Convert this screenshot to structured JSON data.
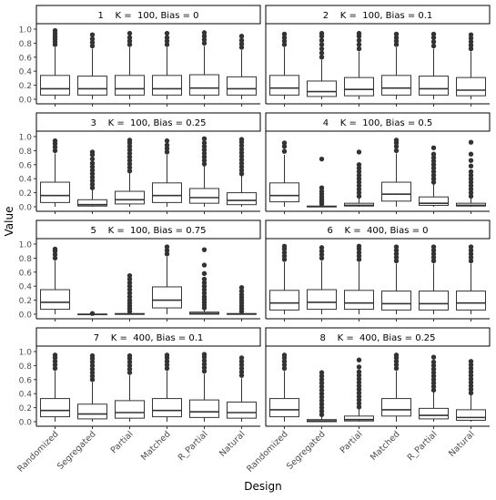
{
  "chart_data": {
    "type": "box",
    "facet_layout": "2 columns x 4 rows",
    "xlabel": "Design",
    "ylabel": "Value",
    "categories": [
      "Randomized",
      "Segregated",
      "Partial",
      "Matched",
      "R_Partial",
      "Natural"
    ],
    "ylim": [
      0,
      1.0
    ],
    "y_ticks": [
      "0.0",
      "0.2",
      "0.4",
      "0.6",
      "0.8",
      "1.0"
    ],
    "grid": false,
    "panels": [
      {
        "title": "1    K =  100, Bias = 0",
        "boxes": [
          {
            "q1": 0.06,
            "median": 0.15,
            "q3": 0.34,
            "whisker_low": 0.0,
            "whisker_high": 0.74,
            "outliers": [
              0.78,
              0.82,
              0.86,
              0.9,
              0.94,
              0.98
            ]
          },
          {
            "q1": 0.06,
            "median": 0.15,
            "q3": 0.33,
            "whisker_low": 0.0,
            "whisker_high": 0.72,
            "outliers": [
              0.76,
              0.81,
              0.86,
              0.92
            ]
          },
          {
            "q1": 0.06,
            "median": 0.15,
            "q3": 0.34,
            "whisker_low": 0.0,
            "whisker_high": 0.74,
            "outliers": [
              0.78,
              0.83,
              0.88,
              0.94
            ]
          },
          {
            "q1": 0.06,
            "median": 0.15,
            "q3": 0.34,
            "whisker_low": 0.0,
            "whisker_high": 0.74,
            "outliers": [
              0.78,
              0.83,
              0.88,
              0.94
            ]
          },
          {
            "q1": 0.06,
            "median": 0.16,
            "q3": 0.35,
            "whisker_low": 0.0,
            "whisker_high": 0.76,
            "outliers": [
              0.8,
              0.85,
              0.9,
              0.95
            ]
          },
          {
            "q1": 0.06,
            "median": 0.15,
            "q3": 0.32,
            "whisker_low": 0.0,
            "whisker_high": 0.7,
            "outliers": [
              0.74,
              0.79,
              0.84,
              0.9
            ]
          }
        ]
      },
      {
        "title": "2    K =  100, Bias = 0.1",
        "boxes": [
          {
            "q1": 0.06,
            "median": 0.16,
            "q3": 0.34,
            "whisker_low": 0.0,
            "whisker_high": 0.74,
            "outliers": [
              0.78,
              0.83,
              0.88,
              0.93
            ]
          },
          {
            "q1": 0.04,
            "median": 0.11,
            "q3": 0.26,
            "whisker_low": 0.0,
            "whisker_high": 0.56,
            "outliers": [
              0.6,
              0.66,
              0.72,
              0.78,
              0.84,
              0.9,
              0.94
            ]
          },
          {
            "q1": 0.05,
            "median": 0.14,
            "q3": 0.31,
            "whisker_low": 0.0,
            "whisker_high": 0.68,
            "outliers": [
              0.72,
              0.78,
              0.84,
              0.9,
              0.94
            ]
          },
          {
            "q1": 0.06,
            "median": 0.16,
            "q3": 0.34,
            "whisker_low": 0.0,
            "whisker_high": 0.74,
            "outliers": [
              0.78,
              0.83,
              0.88,
              0.93
            ]
          },
          {
            "q1": 0.06,
            "median": 0.15,
            "q3": 0.33,
            "whisker_low": 0.0,
            "whisker_high": 0.72,
            "outliers": [
              0.76,
              0.82,
              0.88,
              0.93
            ]
          },
          {
            "q1": 0.05,
            "median": 0.13,
            "q3": 0.31,
            "whisker_low": 0.0,
            "whisker_high": 0.68,
            "outliers": [
              0.72,
              0.77,
              0.82,
              0.87,
              0.92
            ]
          }
        ]
      },
      {
        "title": "3    K =  100, Bias = 0.25",
        "boxes": [
          {
            "q1": 0.06,
            "median": 0.16,
            "q3": 0.35,
            "whisker_low": 0.0,
            "whisker_high": 0.76,
            "outliers": [
              0.8,
              0.85,
              0.9,
              0.94
            ]
          },
          {
            "q1": 0.01,
            "median": 0.03,
            "q3": 0.1,
            "whisker_low": 0.0,
            "whisker_high": 0.24,
            "outliers": [
              0.27,
              0.32,
              0.37,
              0.42,
              0.47,
              0.52,
              0.57,
              0.62,
              0.68,
              0.74,
              0.78
            ]
          },
          {
            "q1": 0.04,
            "median": 0.1,
            "q3": 0.22,
            "whisker_low": 0.0,
            "whisker_high": 0.48,
            "outliers": [
              0.51,
              0.56,
              0.61,
              0.66,
              0.71,
              0.76,
              0.81,
              0.86,
              0.91,
              0.95
            ]
          },
          {
            "q1": 0.06,
            "median": 0.16,
            "q3": 0.34,
            "whisker_low": 0.0,
            "whisker_high": 0.74,
            "outliers": [
              0.78,
              0.83,
              0.88,
              0.94
            ]
          },
          {
            "q1": 0.05,
            "median": 0.13,
            "q3": 0.26,
            "whisker_low": 0.0,
            "whisker_high": 0.58,
            "outliers": [
              0.61,
              0.66,
              0.71,
              0.76,
              0.81,
              0.86,
              0.91,
              0.97
            ]
          },
          {
            "q1": 0.03,
            "median": 0.09,
            "q3": 0.2,
            "whisker_low": 0.0,
            "whisker_high": 0.44,
            "outliers": [
              0.47,
              0.52,
              0.57,
              0.62,
              0.67,
              0.72,
              0.77,
              0.82,
              0.87,
              0.92,
              0.96
            ]
          }
        ]
      },
      {
        "title": "4    K =  100, Bias = 0.5",
        "boxes": [
          {
            "q1": 0.07,
            "median": 0.16,
            "q3": 0.34,
            "whisker_low": 0.0,
            "whisker_high": 0.74,
            "outliers": [
              0.79,
              0.86,
              0.91
            ]
          },
          {
            "q1": 0.0,
            "median": 0.0,
            "q3": 0.01,
            "whisker_low": 0.0,
            "whisker_high": 0.02,
            "outliers": [
              0.04,
              0.07,
              0.1,
              0.14,
              0.18,
              0.22,
              0.27,
              0.68
            ]
          },
          {
            "q1": 0.01,
            "median": 0.02,
            "q3": 0.05,
            "whisker_low": 0.0,
            "whisker_high": 0.12,
            "outliers": [
              0.15,
              0.2,
              0.25,
              0.3,
              0.35,
              0.4,
              0.45,
              0.5,
              0.55,
              0.6,
              0.78
            ]
          },
          {
            "q1": 0.08,
            "median": 0.18,
            "q3": 0.35,
            "whisker_low": 0.0,
            "whisker_high": 0.76,
            "outliers": [
              0.8,
              0.86,
              0.91,
              0.95
            ]
          },
          {
            "q1": 0.02,
            "median": 0.05,
            "q3": 0.14,
            "whisker_low": 0.0,
            "whisker_high": 0.32,
            "outliers": [
              0.35,
              0.4,
              0.45,
              0.5,
              0.55,
              0.6,
              0.65,
              0.7,
              0.75,
              0.84
            ]
          },
          {
            "q1": 0.01,
            "median": 0.02,
            "q3": 0.05,
            "whisker_low": 0.0,
            "whisker_high": 0.12,
            "outliers": [
              0.15,
              0.2,
              0.25,
              0.3,
              0.35,
              0.4,
              0.45,
              0.5,
              0.58,
              0.66,
              0.75,
              0.92
            ]
          }
        ]
      },
      {
        "title": "5    K =  100, Bias = 0.75",
        "boxes": [
          {
            "q1": 0.07,
            "median": 0.17,
            "q3": 0.35,
            "whisker_low": 0.0,
            "whisker_high": 0.76,
            "outliers": [
              0.8,
              0.85,
              0.9,
              0.93
            ]
          },
          {
            "q1": 0.0,
            "median": 0.0,
            "q3": 0.0,
            "whisker_low": 0.0,
            "whisker_high": 0.0,
            "outliers": [
              0.01
            ]
          },
          {
            "q1": 0.0,
            "median": 0.0,
            "q3": 0.01,
            "whisker_low": 0.0,
            "whisker_high": 0.02,
            "outliers": [
              0.04,
              0.08,
              0.12,
              0.16,
              0.2,
              0.25,
              0.3,
              0.35,
              0.4,
              0.45,
              0.5,
              0.55
            ]
          },
          {
            "q1": 0.09,
            "median": 0.2,
            "q3": 0.39,
            "whisker_low": 0.0,
            "whisker_high": 0.82,
            "outliers": [
              0.86,
              0.91,
              0.96
            ]
          },
          {
            "q1": 0.0,
            "median": 0.01,
            "q3": 0.03,
            "whisker_low": 0.0,
            "whisker_high": 0.06,
            "outliers": [
              0.09,
              0.13,
              0.17,
              0.21,
              0.25,
              0.3,
              0.35,
              0.4,
              0.45,
              0.5,
              0.58,
              0.7,
              0.92
            ]
          },
          {
            "q1": 0.0,
            "median": 0.0,
            "q3": 0.01,
            "whisker_low": 0.0,
            "whisker_high": 0.02,
            "outliers": [
              0.04,
              0.08,
              0.12,
              0.16,
              0.2,
              0.24,
              0.28,
              0.33,
              0.38
            ]
          }
        ]
      },
      {
        "title": "6    K =  400, Bias = 0",
        "boxes": [
          {
            "q1": 0.06,
            "median": 0.16,
            "q3": 0.34,
            "whisker_low": 0.0,
            "whisker_high": 0.74,
            "outliers": [
              0.78,
              0.83,
              0.88,
              0.93,
              0.97
            ]
          },
          {
            "q1": 0.07,
            "median": 0.17,
            "q3": 0.35,
            "whisker_low": 0.0,
            "whisker_high": 0.76,
            "outliers": [
              0.8,
              0.85,
              0.9,
              0.95
            ]
          },
          {
            "q1": 0.07,
            "median": 0.16,
            "q3": 0.34,
            "whisker_low": 0.0,
            "whisker_high": 0.74,
            "outliers": [
              0.78,
              0.83,
              0.88,
              0.93,
              0.97
            ]
          },
          {
            "q1": 0.06,
            "median": 0.15,
            "q3": 0.33,
            "whisker_low": 0.0,
            "whisker_high": 0.72,
            "outliers": [
              0.76,
              0.81,
              0.86,
              0.91,
              0.96
            ]
          },
          {
            "q1": 0.06,
            "median": 0.15,
            "q3": 0.33,
            "whisker_low": 0.0,
            "whisker_high": 0.72,
            "outliers": [
              0.76,
              0.81,
              0.86,
              0.91,
              0.96
            ]
          },
          {
            "q1": 0.06,
            "median": 0.16,
            "q3": 0.33,
            "whisker_low": 0.0,
            "whisker_high": 0.72,
            "outliers": [
              0.76,
              0.81,
              0.86,
              0.91,
              0.96
            ]
          }
        ]
      },
      {
        "title": "7    K =  400, Bias = 0.1",
        "boxes": [
          {
            "q1": 0.07,
            "median": 0.16,
            "q3": 0.33,
            "whisker_low": 0.0,
            "whisker_high": 0.72,
            "outliers": [
              0.76,
              0.81,
              0.86,
              0.91,
              0.95
            ]
          },
          {
            "q1": 0.04,
            "median": 0.11,
            "q3": 0.25,
            "whisker_low": 0.0,
            "whisker_high": 0.56,
            "outliers": [
              0.6,
              0.65,
              0.7,
              0.75,
              0.8,
              0.85,
              0.9,
              0.94
            ]
          },
          {
            "q1": 0.05,
            "median": 0.13,
            "q3": 0.3,
            "whisker_low": 0.0,
            "whisker_high": 0.66,
            "outliers": [
              0.7,
              0.75,
              0.8,
              0.85,
              0.9,
              0.94
            ]
          },
          {
            "q1": 0.07,
            "median": 0.16,
            "q3": 0.33,
            "whisker_low": 0.0,
            "whisker_high": 0.72,
            "outliers": [
              0.76,
              0.81,
              0.86,
              0.91,
              0.95
            ]
          },
          {
            "q1": 0.06,
            "median": 0.14,
            "q3": 0.31,
            "whisker_low": 0.0,
            "whisker_high": 0.68,
            "outliers": [
              0.72,
              0.77,
              0.82,
              0.87,
              0.92,
              0.96
            ]
          },
          {
            "q1": 0.05,
            "median": 0.13,
            "q3": 0.28,
            "whisker_low": 0.0,
            "whisker_high": 0.62,
            "outliers": [
              0.66,
              0.71,
              0.76,
              0.81,
              0.86,
              0.91
            ]
          }
        ]
      },
      {
        "title": "8    K =  400, Bias = 0.25",
        "boxes": [
          {
            "q1": 0.07,
            "median": 0.17,
            "q3": 0.33,
            "whisker_low": 0.0,
            "whisker_high": 0.72,
            "outliers": [
              0.76,
              0.81,
              0.86,
              0.91,
              0.95
            ]
          },
          {
            "q1": 0.0,
            "median": 0.01,
            "q3": 0.03,
            "whisker_low": 0.0,
            "whisker_high": 0.07,
            "outliers": [
              0.1,
              0.15,
              0.2,
              0.25,
              0.3,
              0.35,
              0.4,
              0.45,
              0.5,
              0.55,
              0.6,
              0.65,
              0.7
            ]
          },
          {
            "q1": 0.01,
            "median": 0.03,
            "q3": 0.08,
            "whisker_low": 0.0,
            "whisker_high": 0.18,
            "outliers": [
              0.21,
              0.26,
              0.31,
              0.36,
              0.41,
              0.46,
              0.51,
              0.56,
              0.61,
              0.66,
              0.71,
              0.78,
              0.88
            ]
          },
          {
            "q1": 0.08,
            "median": 0.17,
            "q3": 0.33,
            "whisker_low": 0.0,
            "whisker_high": 0.72,
            "outliers": [
              0.76,
              0.81,
              0.86,
              0.91,
              0.95
            ]
          },
          {
            "q1": 0.04,
            "median": 0.09,
            "q3": 0.19,
            "whisker_low": 0.0,
            "whisker_high": 0.42,
            "outliers": [
              0.45,
              0.5,
              0.55,
              0.6,
              0.65,
              0.7,
              0.75,
              0.8,
              0.85,
              0.92
            ]
          },
          {
            "q1": 0.02,
            "median": 0.06,
            "q3": 0.17,
            "whisker_low": 0.0,
            "whisker_high": 0.38,
            "outliers": [
              0.41,
              0.46,
              0.51,
              0.56,
              0.61,
              0.66,
              0.71,
              0.76,
              0.81,
              0.86
            ]
          }
        ]
      }
    ]
  }
}
